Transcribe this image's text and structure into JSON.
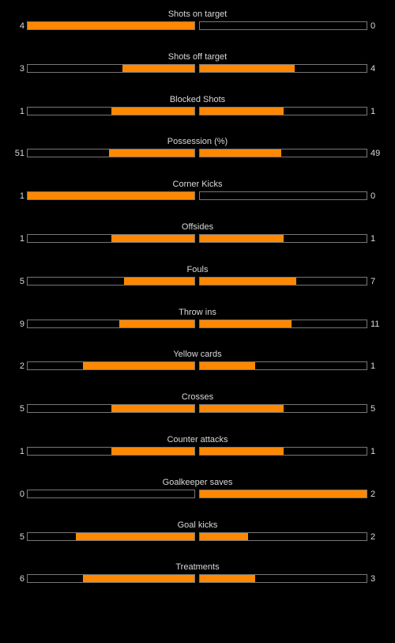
{
  "colors": {
    "background": "#000000",
    "bar_fill": "#ff8800",
    "bar_border": "#777777",
    "text": "#d9d9d9"
  },
  "stats": [
    {
      "label": "Shots on target",
      "home": "4",
      "away": "0",
      "home_share": 1.0,
      "away_share": 0.0
    },
    {
      "label": "Shots off target",
      "home": "3",
      "away": "4",
      "home_share": 0.43,
      "away_share": 0.57
    },
    {
      "label": "Blocked Shots",
      "home": "1",
      "away": "1",
      "home_share": 0.5,
      "away_share": 0.5
    },
    {
      "label": "Possession (%)",
      "home": "51",
      "away": "49",
      "home_share": 0.51,
      "away_share": 0.49
    },
    {
      "label": "Corner Kicks",
      "home": "1",
      "away": "0",
      "home_share": 1.0,
      "away_share": 0.0
    },
    {
      "label": "Offsides",
      "home": "1",
      "away": "1",
      "home_share": 0.5,
      "away_share": 0.5
    },
    {
      "label": "Fouls",
      "home": "5",
      "away": "7",
      "home_share": 0.42,
      "away_share": 0.58
    },
    {
      "label": "Throw ins",
      "home": "9",
      "away": "11",
      "home_share": 0.45,
      "away_share": 0.55
    },
    {
      "label": "Yellow cards",
      "home": "2",
      "away": "1",
      "home_share": 0.67,
      "away_share": 0.33
    },
    {
      "label": "Crosses",
      "home": "5",
      "away": "5",
      "home_share": 0.5,
      "away_share": 0.5
    },
    {
      "label": "Counter attacks",
      "home": "1",
      "away": "1",
      "home_share": 0.5,
      "away_share": 0.5
    },
    {
      "label": "Goalkeeper saves",
      "home": "0",
      "away": "2",
      "home_share": 0.0,
      "away_share": 1.0
    },
    {
      "label": "Goal kicks",
      "home": "5",
      "away": "2",
      "home_share": 0.71,
      "away_share": 0.29
    },
    {
      "label": "Treatments",
      "home": "6",
      "away": "3",
      "home_share": 0.67,
      "away_share": 0.33
    }
  ]
}
